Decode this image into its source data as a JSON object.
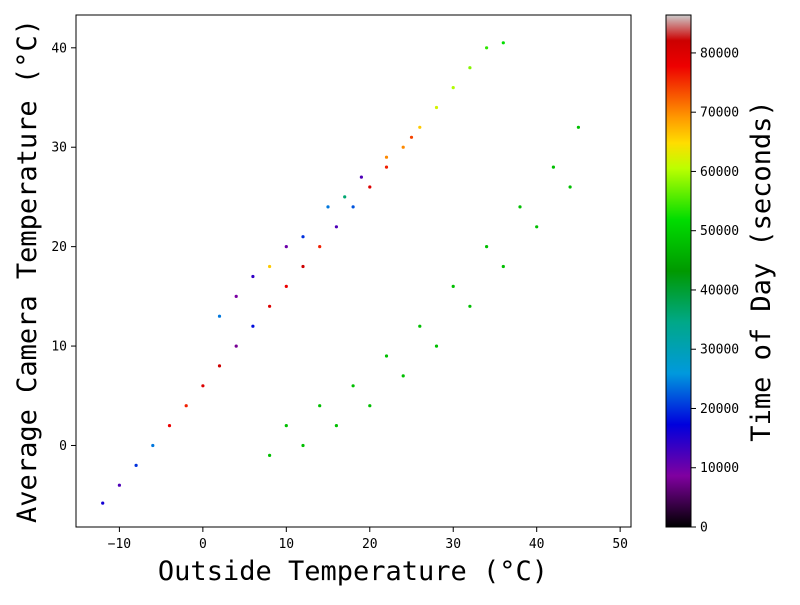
{
  "chart_data": {
    "type": "scatter",
    "title": "",
    "xlabel": "Outside Temperature (°C)",
    "ylabel": "Average Camera Temperature (°C)",
    "xlim": [
      -15.2,
      51.3
    ],
    "ylim": [
      -8.2,
      43.3
    ],
    "xticks": [
      -10,
      0,
      10,
      20,
      30,
      40,
      50
    ],
    "yticks": [
      0,
      10,
      20,
      30,
      40
    ],
    "grid": false,
    "legend": "none",
    "colorbar": {
      "label": "Time of Day (seconds)",
      "min": 0,
      "max": 86400,
      "ticks": [
        0,
        10000,
        20000,
        30000,
        40000,
        50000,
        60000,
        70000,
        80000
      ],
      "colormap": "nipy_spectral",
      "colormap_stops": [
        {
          "t": 0.0,
          "color": "#000000"
        },
        {
          "t": 0.1,
          "color": "#8000a0"
        },
        {
          "t": 0.2,
          "color": "#0000dd"
        },
        {
          "t": 0.3,
          "color": "#0099dd"
        },
        {
          "t": 0.4,
          "color": "#00a888"
        },
        {
          "t": 0.5,
          "color": "#009900"
        },
        {
          "t": 0.6,
          "color": "#00dd00"
        },
        {
          "t": 0.7,
          "color": "#bbff00"
        },
        {
          "t": 0.75,
          "color": "#ffdd00"
        },
        {
          "t": 0.8,
          "color": "#ff9900"
        },
        {
          "t": 0.9,
          "color": "#ee0000"
        },
        {
          "t": 0.95,
          "color": "#cc0000"
        },
        {
          "t": 1.0,
          "color": "#cccccc"
        }
      ]
    },
    "series": [
      {
        "description": "night_diagonal",
        "points": [
          [
            -12,
            -5.8
          ],
          [
            -10,
            -4
          ],
          [
            -8,
            -2
          ],
          [
            -6,
            0
          ],
          [
            -4,
            2
          ],
          [
            -2,
            4
          ],
          [
            0,
            6
          ],
          [
            2,
            8
          ],
          [
            4,
            10
          ],
          [
            6,
            12
          ],
          [
            8,
            14
          ],
          [
            10,
            16
          ],
          [
            12,
            18
          ],
          [
            14,
            20
          ],
          [
            16,
            22
          ],
          [
            18,
            24
          ],
          [
            20,
            26
          ],
          [
            22,
            28
          ],
          [
            24,
            30
          ],
          [
            26,
            32
          ],
          [
            28,
            34
          ],
          [
            30,
            36
          ],
          [
            32,
            38
          ],
          [
            34,
            40
          ],
          [
            36,
            40.5
          ]
        ],
        "time_of_day": [
          16000,
          12000,
          20000,
          24000,
          78000,
          76000,
          80000,
          82000,
          8000,
          18000,
          80000,
          78000,
          82000,
          76000,
          12000,
          22000,
          80000,
          76000,
          70000,
          66000,
          62000,
          60000,
          58000,
          54000,
          52000
        ]
      },
      {
        "description": "afternoon_cooling_curves",
        "points": [
          [
            45,
            32
          ],
          [
            42,
            28
          ],
          [
            38,
            24
          ],
          [
            34,
            20
          ],
          [
            30,
            16
          ],
          [
            26,
            12
          ],
          [
            22,
            9
          ],
          [
            18,
            6
          ],
          [
            14,
            4
          ],
          [
            10,
            2
          ],
          [
            44,
            26
          ],
          [
            40,
            22
          ],
          [
            36,
            18
          ],
          [
            32,
            14
          ],
          [
            28,
            10
          ],
          [
            24,
            7
          ],
          [
            20,
            4
          ],
          [
            16,
            2
          ],
          [
            12,
            0
          ],
          [
            8,
            -1
          ]
        ],
        "time_of_day": [
          48000
        ]
      },
      {
        "description": "morning_cluster",
        "points": [
          [
            2,
            13
          ],
          [
            4,
            15
          ],
          [
            6,
            17
          ],
          [
            8,
            18
          ],
          [
            10,
            20
          ],
          [
            12,
            21
          ],
          [
            15,
            24
          ],
          [
            17,
            25
          ],
          [
            19,
            27
          ],
          [
            22,
            29
          ],
          [
            25,
            31
          ]
        ],
        "time_of_day": [
          24000,
          9000,
          14000,
          66000,
          10000,
          20000,
          24000,
          36000,
          12000,
          70000,
          74000
        ]
      }
    ]
  }
}
